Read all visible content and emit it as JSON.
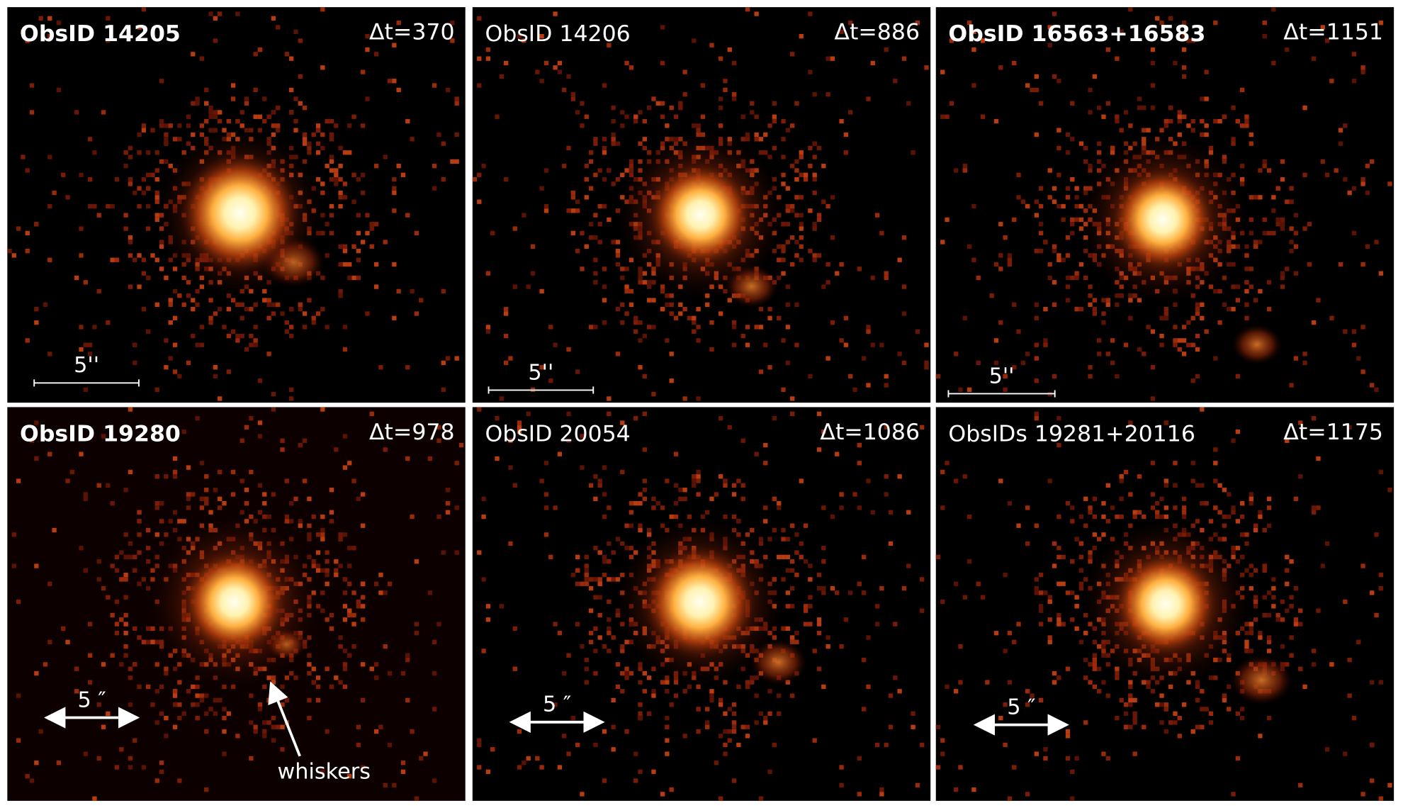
{
  "panels": [
    {
      "title": "ObsID 14205",
      "delta_t": "Δt=370",
      "scale_label": "5''"
    },
    {
      "title": "ObsID 14206",
      "delta_t": "Δt=886",
      "scale_label": "5''"
    },
    {
      "title": "ObsID 16563+16583",
      "delta_t": "Δt=1151",
      "scale_label": "5''"
    },
    {
      "title": "ObsID 19280",
      "delta_t": "Δt=978",
      "scale_label": "5 ″"
    },
    {
      "title": "ObsID 20054",
      "delta_t": "Δt=1086",
      "scale_label": "5 ″"
    },
    {
      "title": "ObsIDs 19281+20116",
      "delta_t": "Δt=1175",
      "scale_label": "5 ″"
    }
  ],
  "annotation": "whiskers"
}
